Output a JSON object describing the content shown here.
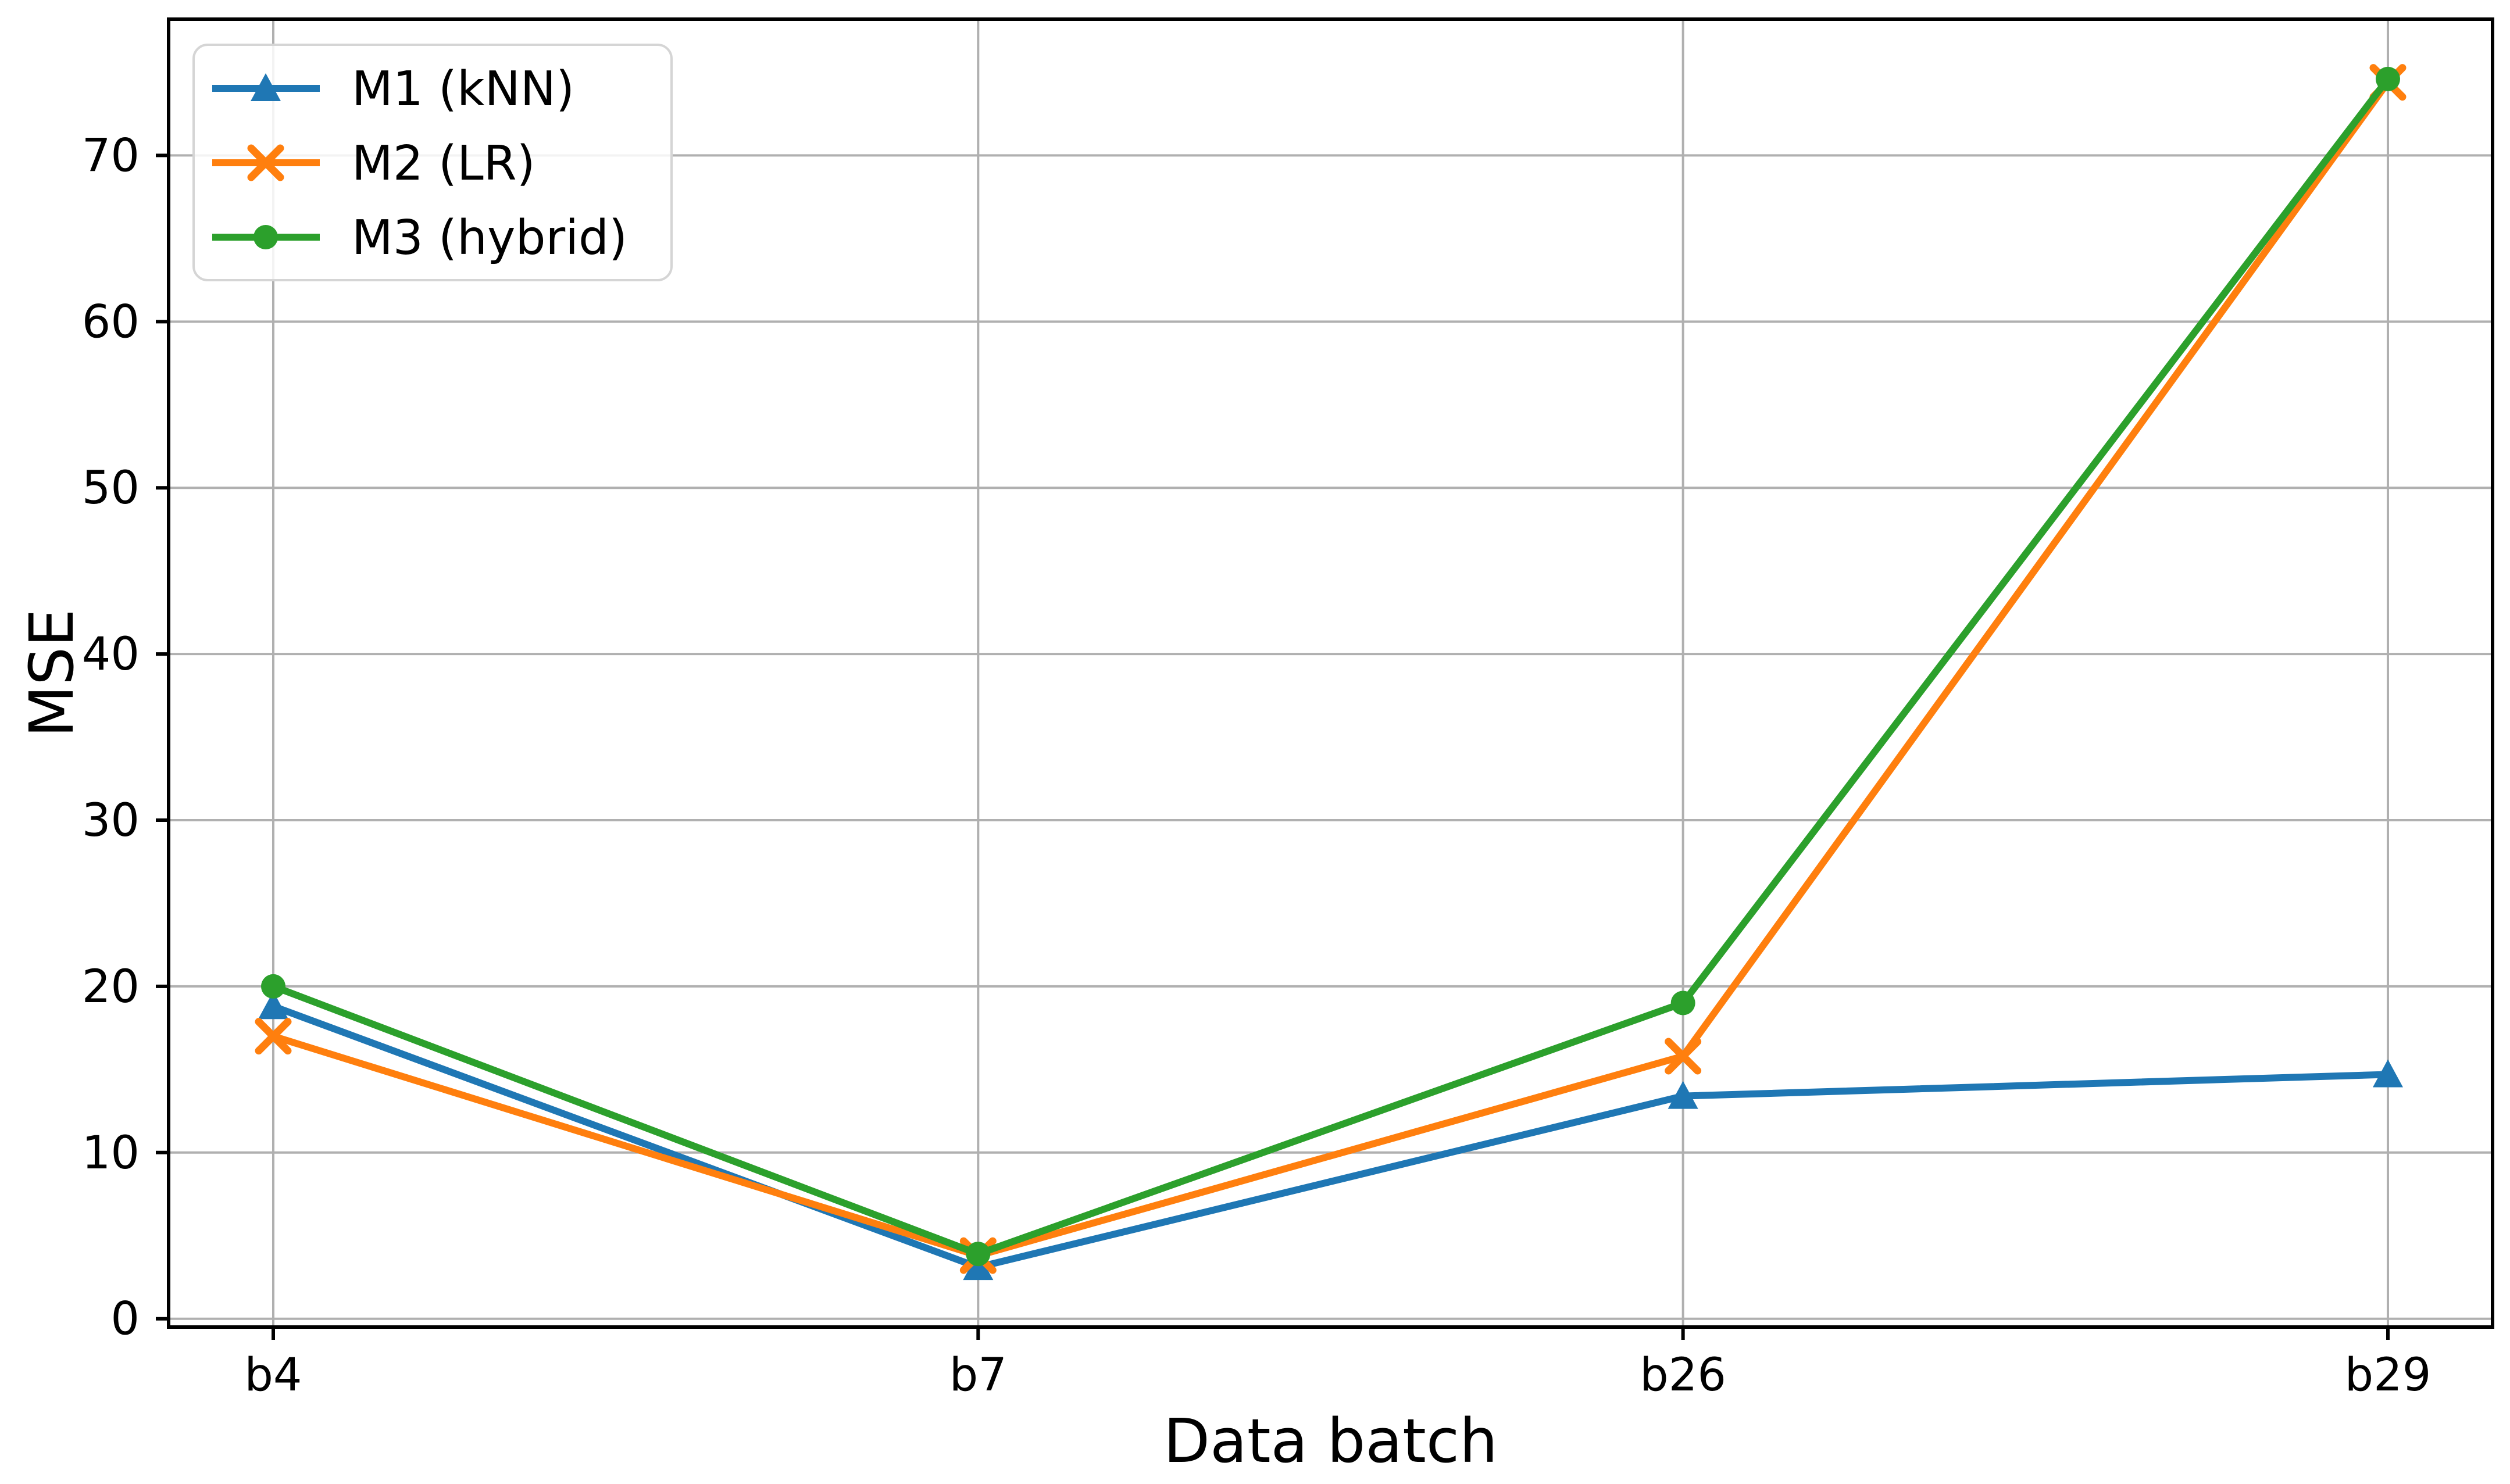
{
  "chart_data": {
    "type": "line",
    "title": "",
    "xlabel": "Data batch",
    "ylabel": "MSE",
    "categories": [
      "b4",
      "b7",
      "b26",
      "b29"
    ],
    "series": [
      {
        "name": "M1 (kNN)",
        "color": "#1f77b4",
        "marker": "triangle",
        "values": [
          18.8,
          3.1,
          13.4,
          14.7
        ]
      },
      {
        "name": "M2 (LR)",
        "color": "#ff7f0e",
        "marker": "x",
        "values": [
          17.0,
          3.8,
          15.8,
          74.4
        ]
      },
      {
        "name": "M3 (hybrid)",
        "color": "#2ca02c",
        "marker": "circle",
        "values": [
          20.0,
          3.9,
          19.0,
          74.6
        ]
      }
    ],
    "yticks": [
      0,
      10,
      20,
      30,
      40,
      50,
      60,
      70
    ],
    "ylim": [
      -0.5,
      78.2
    ],
    "grid": true,
    "legend_position": "upper-left",
    "styles": {
      "grid_color": "#b0b0b0",
      "spine_color": "#000000",
      "background": "#ffffff",
      "legend_border": "#d5d5d5",
      "text_color": "#000000"
    }
  }
}
